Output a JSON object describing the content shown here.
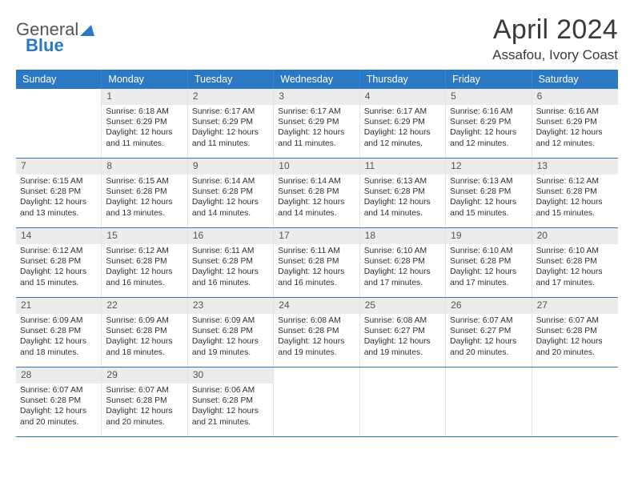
{
  "brand": {
    "part1": "General",
    "part2": "Blue"
  },
  "title": "April 2024",
  "location": "Assafou, Ivory Coast",
  "colors": {
    "header_bg": "#2b78c5",
    "header_text": "#ffffff",
    "daynum_bg": "#ececec",
    "row_divider": "#2b78c5",
    "cell_border": "#e3e3e3",
    "body_text": "#2f2f2f"
  },
  "weekdays": [
    "Sunday",
    "Monday",
    "Tuesday",
    "Wednesday",
    "Thursday",
    "Friday",
    "Saturday"
  ],
  "weeks": [
    [
      null,
      {
        "n": "1",
        "sunrise": "6:18 AM",
        "sunset": "6:29 PM",
        "daylight": "12 hours and 11 minutes."
      },
      {
        "n": "2",
        "sunrise": "6:17 AM",
        "sunset": "6:29 PM",
        "daylight": "12 hours and 11 minutes."
      },
      {
        "n": "3",
        "sunrise": "6:17 AM",
        "sunset": "6:29 PM",
        "daylight": "12 hours and 11 minutes."
      },
      {
        "n": "4",
        "sunrise": "6:17 AM",
        "sunset": "6:29 PM",
        "daylight": "12 hours and 12 minutes."
      },
      {
        "n": "5",
        "sunrise": "6:16 AM",
        "sunset": "6:29 PM",
        "daylight": "12 hours and 12 minutes."
      },
      {
        "n": "6",
        "sunrise": "6:16 AM",
        "sunset": "6:29 PM",
        "daylight": "12 hours and 12 minutes."
      }
    ],
    [
      {
        "n": "7",
        "sunrise": "6:15 AM",
        "sunset": "6:28 PM",
        "daylight": "12 hours and 13 minutes."
      },
      {
        "n": "8",
        "sunrise": "6:15 AM",
        "sunset": "6:28 PM",
        "daylight": "12 hours and 13 minutes."
      },
      {
        "n": "9",
        "sunrise": "6:14 AM",
        "sunset": "6:28 PM",
        "daylight": "12 hours and 14 minutes."
      },
      {
        "n": "10",
        "sunrise": "6:14 AM",
        "sunset": "6:28 PM",
        "daylight": "12 hours and 14 minutes."
      },
      {
        "n": "11",
        "sunrise": "6:13 AM",
        "sunset": "6:28 PM",
        "daylight": "12 hours and 14 minutes."
      },
      {
        "n": "12",
        "sunrise": "6:13 AM",
        "sunset": "6:28 PM",
        "daylight": "12 hours and 15 minutes."
      },
      {
        "n": "13",
        "sunrise": "6:12 AM",
        "sunset": "6:28 PM",
        "daylight": "12 hours and 15 minutes."
      }
    ],
    [
      {
        "n": "14",
        "sunrise": "6:12 AM",
        "sunset": "6:28 PM",
        "daylight": "12 hours and 15 minutes."
      },
      {
        "n": "15",
        "sunrise": "6:12 AM",
        "sunset": "6:28 PM",
        "daylight": "12 hours and 16 minutes."
      },
      {
        "n": "16",
        "sunrise": "6:11 AM",
        "sunset": "6:28 PM",
        "daylight": "12 hours and 16 minutes."
      },
      {
        "n": "17",
        "sunrise": "6:11 AM",
        "sunset": "6:28 PM",
        "daylight": "12 hours and 16 minutes."
      },
      {
        "n": "18",
        "sunrise": "6:10 AM",
        "sunset": "6:28 PM",
        "daylight": "12 hours and 17 minutes."
      },
      {
        "n": "19",
        "sunrise": "6:10 AM",
        "sunset": "6:28 PM",
        "daylight": "12 hours and 17 minutes."
      },
      {
        "n": "20",
        "sunrise": "6:10 AM",
        "sunset": "6:28 PM",
        "daylight": "12 hours and 17 minutes."
      }
    ],
    [
      {
        "n": "21",
        "sunrise": "6:09 AM",
        "sunset": "6:28 PM",
        "daylight": "12 hours and 18 minutes."
      },
      {
        "n": "22",
        "sunrise": "6:09 AM",
        "sunset": "6:28 PM",
        "daylight": "12 hours and 18 minutes."
      },
      {
        "n": "23",
        "sunrise": "6:09 AM",
        "sunset": "6:28 PM",
        "daylight": "12 hours and 19 minutes."
      },
      {
        "n": "24",
        "sunrise": "6:08 AM",
        "sunset": "6:28 PM",
        "daylight": "12 hours and 19 minutes."
      },
      {
        "n": "25",
        "sunrise": "6:08 AM",
        "sunset": "6:27 PM",
        "daylight": "12 hours and 19 minutes."
      },
      {
        "n": "26",
        "sunrise": "6:07 AM",
        "sunset": "6:27 PM",
        "daylight": "12 hours and 20 minutes."
      },
      {
        "n": "27",
        "sunrise": "6:07 AM",
        "sunset": "6:28 PM",
        "daylight": "12 hours and 20 minutes."
      }
    ],
    [
      {
        "n": "28",
        "sunrise": "6:07 AM",
        "sunset": "6:28 PM",
        "daylight": "12 hours and 20 minutes."
      },
      {
        "n": "29",
        "sunrise": "6:07 AM",
        "sunset": "6:28 PM",
        "daylight": "12 hours and 20 minutes."
      },
      {
        "n": "30",
        "sunrise": "6:06 AM",
        "sunset": "6:28 PM",
        "daylight": "12 hours and 21 minutes."
      },
      null,
      null,
      null,
      null
    ]
  ],
  "labels": {
    "sunrise_prefix": "Sunrise: ",
    "sunset_prefix": "Sunset: ",
    "daylight_prefix": "Daylight: "
  }
}
